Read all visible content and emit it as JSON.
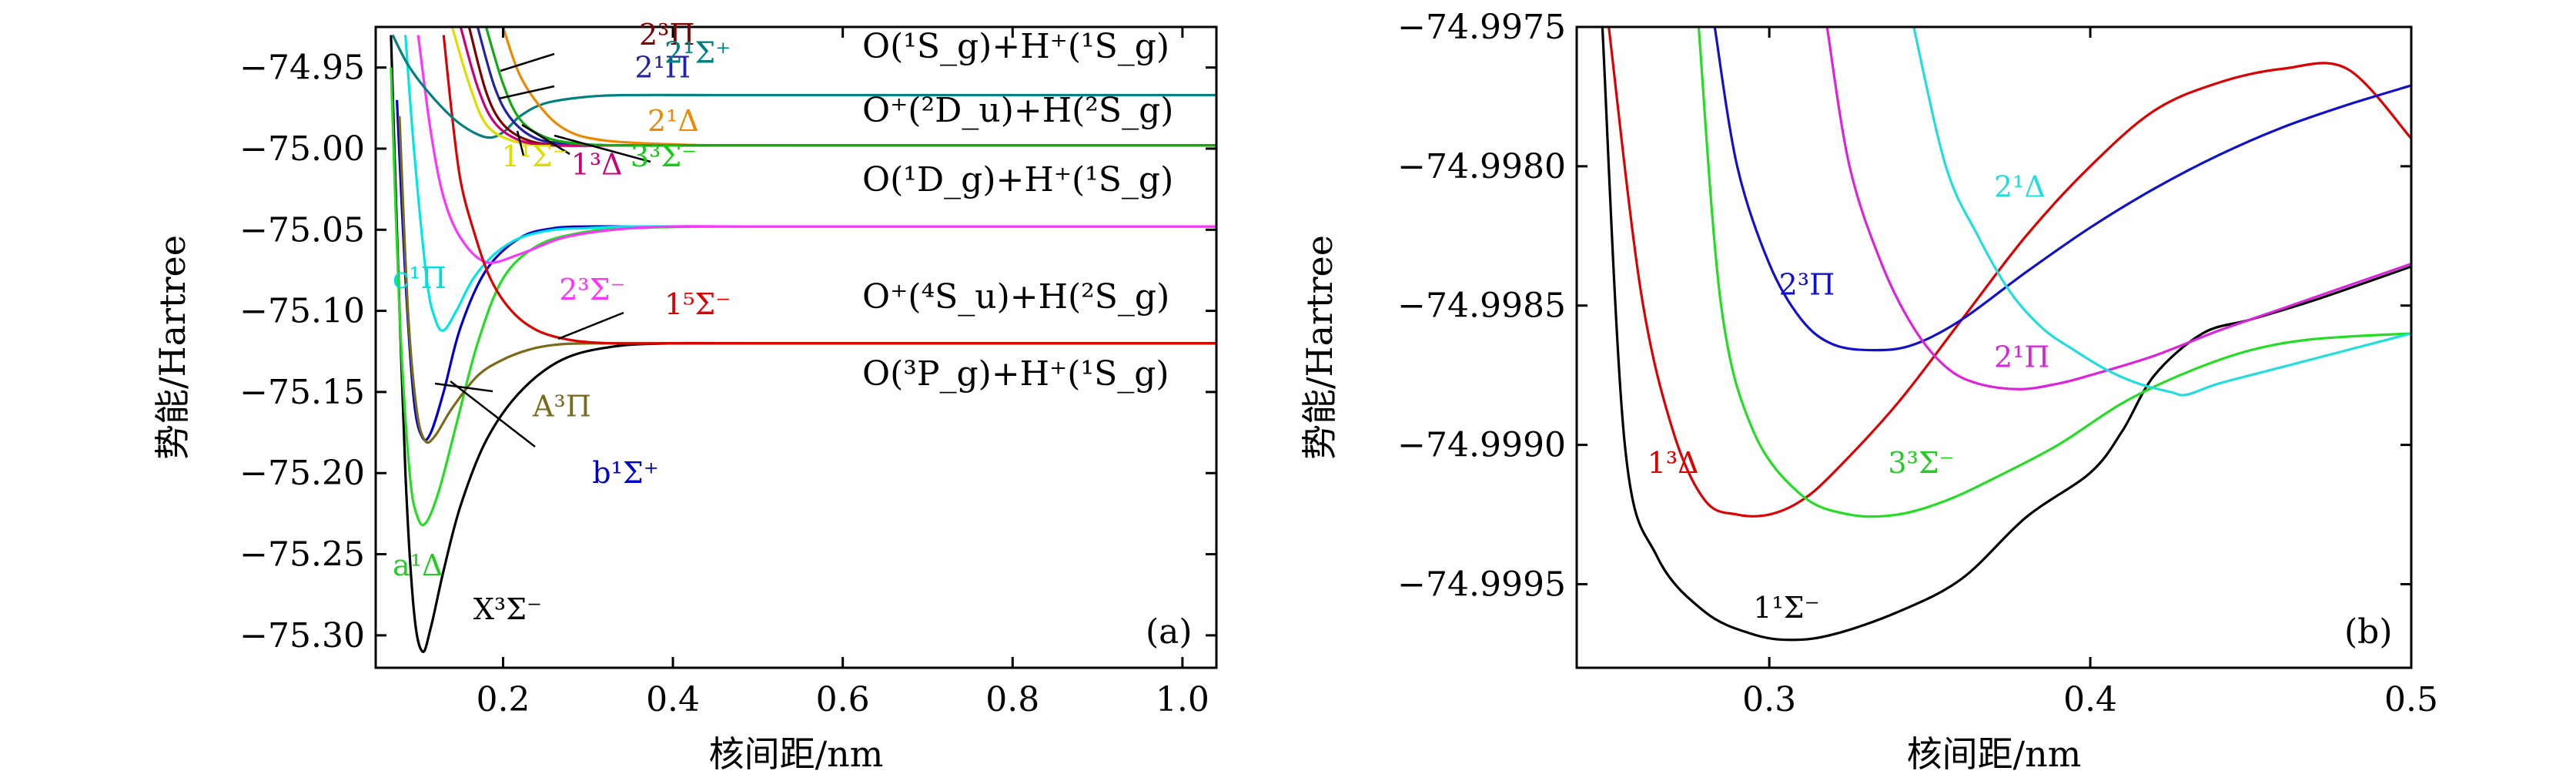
{
  "chart_data": [
    {
      "panel": "(a)",
      "type": "line",
      "xlabel": "核间距/nm",
      "ylabel": "势能/Hartree",
      "xlim": [
        0.05,
        1.04
      ],
      "ylim": [
        -75.32,
        -74.925
      ],
      "xticks": [
        0.2,
        0.4,
        0.6,
        0.8,
        1.0
      ],
      "xtick_labels": [
        "0.2",
        "0.4",
        "0.6",
        "0.8",
        "1.0"
      ],
      "yticks": [
        -74.95,
        -75.0,
        -75.05,
        -75.1,
        -75.15,
        -75.2,
        -75.25,
        -75.3
      ],
      "ytick_labels": [
        "−74.95",
        "−75.00",
        "−75.05",
        "−75.10",
        "−75.15",
        "−75.20",
        "−75.25",
        "−75.30"
      ],
      "asymptotes": [
        {
          "text": "O(¹S_g)+H⁺(¹S_g)",
          "y": -74.967
        },
        {
          "text": "O⁺(²D_u)+H(²S_g)",
          "y": -74.998
        },
        {
          "text": "O(¹D_g)+H⁺(¹S_g)",
          "y": -75.048
        },
        {
          "text": "O⁺(⁴S_u)+H(²S_g)",
          "y": -75.12
        },
        {
          "text": "O(³P_g)+H⁺(¹S_g)",
          "y": -75.12
        }
      ],
      "series": [
        {
          "name": "X³Σ⁻",
          "color": "#000000",
          "x": [
            0.068,
            0.075,
            0.085,
            0.095,
            0.105,
            0.115,
            0.13,
            0.15,
            0.18,
            0.22,
            0.27,
            0.33,
            0.4,
            0.5,
            0.6,
            0.8,
            1.04
          ],
          "y": [
            -74.93,
            -75.05,
            -75.2,
            -75.285,
            -75.31,
            -75.295,
            -75.26,
            -75.22,
            -75.18,
            -75.15,
            -75.13,
            -75.122,
            -75.12,
            -75.12,
            -75.12,
            -75.12,
            -75.12
          ]
        },
        {
          "name": "a¹Δ",
          "color": "#22dd22",
          "x": [
            0.068,
            0.078,
            0.09,
            0.1,
            0.11,
            0.125,
            0.145,
            0.17,
            0.2,
            0.24,
            0.29,
            0.35,
            0.45,
            0.6,
            0.8,
            1.04
          ],
          "y": [
            -74.95,
            -75.1,
            -75.2,
            -75.228,
            -75.23,
            -75.21,
            -75.17,
            -75.12,
            -75.08,
            -75.06,
            -75.052,
            -75.049,
            -75.048,
            -75.048,
            -75.048,
            -75.048
          ]
        },
        {
          "name": "b¹Σ⁺",
          "color": "#0000cc",
          "x": [
            0.075,
            0.085,
            0.095,
            0.105,
            0.115,
            0.13,
            0.15,
            0.18,
            0.22,
            0.26,
            0.3,
            0.35,
            0.45,
            0.6,
            0.8,
            1.04
          ],
          "y": [
            -74.97,
            -75.08,
            -75.155,
            -75.178,
            -75.175,
            -75.15,
            -75.11,
            -75.075,
            -75.055,
            -75.049,
            -75.048,
            -75.048,
            -75.048,
            -75.048,
            -75.048,
            -75.048
          ]
        },
        {
          "name": "A³Π",
          "color": "#7a6a1a",
          "x": [
            0.078,
            0.088,
            0.098,
            0.108,
            0.12,
            0.14,
            0.17,
            0.2,
            0.23,
            0.26,
            0.3,
            0.4,
            0.6,
            0.8,
            1.04
          ],
          "y": [
            -74.98,
            -75.1,
            -75.16,
            -75.18,
            -75.177,
            -75.16,
            -75.14,
            -75.13,
            -75.124,
            -75.121,
            -75.12,
            -75.12,
            -75.12,
            -75.12,
            -75.12
          ]
        },
        {
          "name": "c¹Π",
          "color": "#00e5e5",
          "x": [
            0.085,
            0.095,
            0.11,
            0.12,
            0.13,
            0.145,
            0.165,
            0.19,
            0.22,
            0.26,
            0.3,
            0.35,
            0.45,
            0.6,
            0.8,
            1.04
          ],
          "y": [
            -74.93,
            -75.0,
            -75.08,
            -75.105,
            -75.112,
            -75.1,
            -75.08,
            -75.065,
            -75.055,
            -75.05,
            -75.049,
            -75.048,
            -75.048,
            -75.048,
            -75.048,
            -75.048
          ]
        },
        {
          "name": "2³Σ⁻",
          "color": "#ff33ff",
          "x": [
            0.1,
            0.115,
            0.13,
            0.15,
            0.18,
            0.22,
            0.27,
            0.33,
            0.4,
            0.5,
            0.6,
            0.8,
            1.04
          ],
          "y": [
            -74.93,
            -74.99,
            -75.03,
            -75.055,
            -75.07,
            -75.065,
            -75.055,
            -75.05,
            -75.048,
            -75.048,
            -75.048,
            -75.048,
            -75.048
          ]
        },
        {
          "name": "1⁵Σ⁻",
          "color": "#dd0000",
          "x": [
            0.13,
            0.14,
            0.15,
            0.165,
            0.185,
            0.21,
            0.24,
            0.28,
            0.33,
            0.4,
            0.5,
            0.6,
            0.8,
            1.04
          ],
          "y": [
            -74.93,
            -74.98,
            -75.02,
            -75.05,
            -75.08,
            -75.1,
            -75.112,
            -75.118,
            -75.12,
            -75.12,
            -75.12,
            -75.12,
            -75.12,
            -75.12
          ]
        },
        {
          "name": "2¹Σ⁺",
          "color": "#008080",
          "x": [
            0.07,
            0.09,
            0.12,
            0.15,
            0.18,
            0.2,
            0.22,
            0.25,
            0.3,
            0.35,
            0.45,
            0.6,
            0.8,
            1.04
          ],
          "y": [
            -74.93,
            -74.95,
            -74.97,
            -74.985,
            -74.993,
            -74.99,
            -74.98,
            -74.972,
            -74.968,
            -74.967,
            -74.967,
            -74.967,
            -74.967,
            -74.967
          ]
        },
        {
          "name": "2³Π",
          "color": "#800000",
          "x": [
            0.16,
            0.18,
            0.2,
            0.23,
            0.27,
            0.33,
            0.4,
            0.5,
            0.7,
            1.04
          ],
          "y": [
            -74.925,
            -74.965,
            -74.985,
            -74.995,
            -74.998,
            -74.998,
            -74.998,
            -74.998,
            -74.998,
            -74.998
          ]
        },
        {
          "name": "2¹Π",
          "color": "#2222aa",
          "x": [
            0.17,
            0.19,
            0.21,
            0.24,
            0.28,
            0.33,
            0.4,
            0.5,
            0.7,
            1.04
          ],
          "y": [
            -74.925,
            -74.962,
            -74.982,
            -74.994,
            -74.997,
            -74.998,
            -74.998,
            -74.998,
            -74.998,
            -74.998
          ]
        },
        {
          "name": "2¹Δ",
          "color": "#ee8800",
          "x": [
            0.2,
            0.22,
            0.25,
            0.28,
            0.32,
            0.38,
            0.45,
            0.55,
            0.7,
            1.04
          ],
          "y": [
            -74.925,
            -74.955,
            -74.978,
            -74.99,
            -74.995,
            -74.997,
            -74.998,
            -74.998,
            -74.998,
            -74.998
          ]
        },
        {
          "name": "1¹Σ⁻",
          "color": "#dddd00",
          "x": [
            0.14,
            0.16,
            0.18,
            0.21,
            0.25,
            0.3,
            0.4,
            0.55,
            0.7,
            1.04
          ],
          "y": [
            -74.925,
            -74.96,
            -74.985,
            -74.995,
            -74.998,
            -74.998,
            -74.998,
            -74.998,
            -74.998,
            -74.998
          ]
        },
        {
          "name": "1³Δ",
          "color": "#cc0077",
          "x": [
            0.15,
            0.17,
            0.19,
            0.22,
            0.26,
            0.31,
            0.4,
            0.55,
            0.7,
            1.04
          ],
          "y": [
            -74.925,
            -74.962,
            -74.984,
            -74.995,
            -74.998,
            -74.998,
            -74.998,
            -74.998,
            -74.998,
            -74.998
          ]
        },
        {
          "name": "3³Σ⁻",
          "color": "#11aa11",
          "x": [
            0.18,
            0.2,
            0.22,
            0.25,
            0.29,
            0.34,
            0.42,
            0.55,
            0.7,
            1.04
          ],
          "y": [
            -74.925,
            -74.96,
            -74.982,
            -74.993,
            -74.997,
            -74.998,
            -74.998,
            -74.998,
            -74.998,
            -74.998
          ]
        }
      ],
      "state_labels": [
        {
          "text": "2³Π",
          "color": "#800000",
          "x": 0.36,
          "y": -74.936
        },
        {
          "text": "2¹Π",
          "color": "#2222aa",
          "x": 0.355,
          "y": -74.956
        },
        {
          "text": "2¹Σ⁺",
          "color": "#008080",
          "x": 0.39,
          "y": -74.947
        },
        {
          "text": "2¹Δ",
          "color": "#ee8800",
          "x": 0.37,
          "y": -74.989
        },
        {
          "text": "1¹Σ⁻",
          "color": "#dddd00",
          "x": 0.198,
          "y": -75.011
        },
        {
          "text": "1³Δ",
          "color": "#cc0077",
          "x": 0.28,
          "y": -75.016
        },
        {
          "text": "3³Σ⁻",
          "color": "#11cc11",
          "x": 0.35,
          "y": -75.011
        },
        {
          "text": "c¹Π",
          "color": "#00dddd",
          "x": 0.07,
          "y": -75.086
        },
        {
          "text": "2³Σ⁻",
          "color": "#ff33ff",
          "x": 0.266,
          "y": -75.093
        },
        {
          "text": "1⁵Σ⁻",
          "color": "#dd0000",
          "x": 0.39,
          "y": -75.102
        },
        {
          "text": "A³Π",
          "color": "#7a6a1a",
          "x": 0.235,
          "y": -75.165
        },
        {
          "text": "b¹Σ⁺",
          "color": "#0000cc",
          "x": 0.305,
          "y": -75.206
        },
        {
          "text": "a¹Δ",
          "color": "#22cc22",
          "x": 0.07,
          "y": -75.263
        },
        {
          "text": "X³Σ⁻",
          "color": "#000000",
          "x": 0.165,
          "y": -75.29
        }
      ]
    },
    {
      "panel": "(b)",
      "type": "line",
      "xlabel": "核间距/nm",
      "ylabel": "势能/Hartree",
      "xlim": [
        0.24,
        0.5
      ],
      "ylim": [
        -74.9998,
        -74.9975
      ],
      "xticks": [
        0.3,
        0.4,
        0.5
      ],
      "xtick_labels": [
        "0.3",
        "0.4",
        "0.5"
      ],
      "yticks": [
        -74.9975,
        -74.998,
        -74.9985,
        -74.999,
        -74.9995
      ],
      "ytick_labels": [
        "−74.9975",
        "−74.9980",
        "−74.9985",
        "−74.9990",
        "−74.9995"
      ],
      "series": [
        {
          "name": "1¹Σ⁻",
          "color": "#000000",
          "x": [
            0.248,
            0.255,
            0.265,
            0.28,
            0.295,
            0.307,
            0.32,
            0.34,
            0.36,
            0.38,
            0.4,
            0.41,
            0.42,
            0.435,
            0.45,
            0.47,
            0.5
          ],
          "y": [
            -74.9975,
            -74.999,
            -74.9994,
            -74.9996,
            -74.99968,
            -74.9997,
            -74.99968,
            -74.9996,
            -74.99948,
            -74.99926,
            -74.9991,
            -74.99895,
            -74.99875,
            -74.9986,
            -74.99855,
            -74.99848,
            -74.99836
          ]
        },
        {
          "name": "1³Δ",
          "color": "#dd0000",
          "x": [
            0.25,
            0.26,
            0.27,
            0.28,
            0.29,
            0.3,
            0.31,
            0.32,
            0.34,
            0.36,
            0.38,
            0.4,
            0.42,
            0.44,
            0.46,
            0.48,
            0.5
          ],
          "y": [
            -74.9975,
            -74.99845,
            -74.99895,
            -74.9992,
            -74.99925,
            -74.99925,
            -74.9992,
            -74.9991,
            -74.99885,
            -74.99855,
            -74.99825,
            -74.998,
            -74.9978,
            -74.9977,
            -74.99765,
            -74.99765,
            -74.9979
          ]
        },
        {
          "name": "3³Σ⁻",
          "color": "#22dd22",
          "x": [
            0.278,
            0.285,
            0.295,
            0.31,
            0.325,
            0.34,
            0.355,
            0.37,
            0.39,
            0.41,
            0.43,
            0.45,
            0.47,
            0.5
          ],
          "y": [
            -74.9975,
            -74.9985,
            -74.99895,
            -74.99918,
            -74.99925,
            -74.99925,
            -74.9992,
            -74.99912,
            -74.999,
            -74.99885,
            -74.99874,
            -74.99866,
            -74.99862,
            -74.9986
          ]
        },
        {
          "name": "2³Π",
          "color": "#1111cc",
          "x": [
            0.283,
            0.29,
            0.3,
            0.31,
            0.32,
            0.333,
            0.345,
            0.36,
            0.38,
            0.4,
            0.42,
            0.44,
            0.46,
            0.48,
            0.5
          ],
          "y": [
            -74.9975,
            -74.998,
            -74.99835,
            -74.99855,
            -74.99864,
            -74.99866,
            -74.99864,
            -74.99855,
            -74.99838,
            -74.99822,
            -74.99808,
            -74.99796,
            -74.99786,
            -74.99778,
            -74.99771
          ]
        },
        {
          "name": "2¹Π",
          "color": "#dd22dd",
          "x": [
            0.318,
            0.325,
            0.335,
            0.345,
            0.355,
            0.365,
            0.378,
            0.39,
            0.4,
            0.42,
            0.44,
            0.46,
            0.48,
            0.5
          ],
          "y": [
            -74.9975,
            -74.998,
            -74.99835,
            -74.99858,
            -74.99872,
            -74.99878,
            -74.9988,
            -74.99878,
            -74.99875,
            -74.99868,
            -74.99859,
            -74.99851,
            -74.99843,
            -74.99835
          ]
        },
        {
          "name": "2¹Δ",
          "color": "#22dddd",
          "x": [
            0.345,
            0.355,
            0.365,
            0.375,
            0.385,
            0.395,
            0.405,
            0.415,
            0.425,
            0.43,
            0.44,
            0.46,
            0.48,
            0.5
          ],
          "y": [
            -74.9975,
            -74.998,
            -74.99825,
            -74.99845,
            -74.99858,
            -74.99866,
            -74.99873,
            -74.99878,
            -74.99881,
            -74.99882,
            -74.99878,
            -74.99872,
            -74.99866,
            -74.9986
          ]
        }
      ],
      "state_labels": [
        {
          "text": "2¹Δ",
          "color": "#22dddd",
          "x": 0.37,
          "y": -74.99811
        },
        {
          "text": "2³Π",
          "color": "#1111cc",
          "x": 0.303,
          "y": -74.99846
        },
        {
          "text": "2¹Π",
          "color": "#dd22dd",
          "x": 0.37,
          "y": -74.99872
        },
        {
          "text": "1³Δ",
          "color": "#dd0000",
          "x": 0.262,
          "y": -74.9991
        },
        {
          "text": "3³Σ⁻",
          "color": "#22cc22",
          "x": 0.337,
          "y": -74.9991
        },
        {
          "text": "1¹Σ⁻",
          "color": "#000000",
          "x": 0.295,
          "y": -74.99962
        }
      ]
    }
  ]
}
